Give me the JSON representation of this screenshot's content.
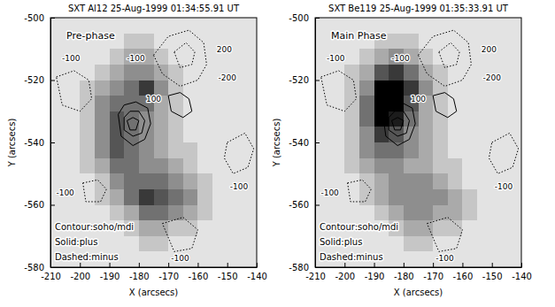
{
  "chart_data": [
    {
      "type": "image",
      "title": "SXT Al12 25-Aug-1999 01:34:55.91 UT",
      "phase": "Pre-phase",
      "notes": [
        "Contour:soho/mdi",
        "Solid:plus",
        "Dashed:minus"
      ],
      "xlabel": "X (arcsecs)",
      "ylabel": "Y (arcsecs)",
      "xlim": [
        -210,
        -140
      ],
      "ylim": [
        -580,
        -500
      ],
      "xticks": [
        -210,
        -200,
        -190,
        -180,
        -170,
        -160,
        -150,
        -140
      ],
      "yticks": [
        -580,
        -560,
        -540,
        -520,
        -500
      ],
      "zlim": [
        0,
        9
      ],
      "x_bins": [
        -210,
        -205,
        -200,
        -195,
        -190,
        -185,
        -180,
        -175,
        -170,
        -165,
        -160,
        -155,
        -150,
        -145,
        -140
      ],
      "y_bins": [
        -500,
        -505,
        -510,
        -515,
        -520,
        -525,
        -530,
        -535,
        -540,
        -545,
        -550,
        -555,
        -560,
        -565,
        -570,
        -575,
        -580
      ],
      "cells": [
        [
          1,
          1,
          1,
          1,
          1,
          1,
          1,
          1,
          1,
          1,
          1,
          1,
          1,
          1
        ],
        [
          1,
          1,
          1,
          1,
          1,
          2,
          2,
          1,
          1,
          1,
          1,
          1,
          1,
          1
        ],
        [
          1,
          1,
          1,
          1,
          2,
          3,
          3,
          2,
          1,
          1,
          1,
          1,
          1,
          1
        ],
        [
          1,
          1,
          1,
          2,
          3,
          4,
          4,
          3,
          2,
          1,
          1,
          1,
          1,
          1
        ],
        [
          1,
          1,
          2,
          3,
          4,
          5,
          7,
          4,
          2,
          1,
          1,
          1,
          1,
          1
        ],
        [
          1,
          1,
          2,
          4,
          5,
          5,
          5,
          3,
          2,
          1,
          1,
          1,
          1,
          1
        ],
        [
          1,
          1,
          2,
          4,
          6,
          5,
          4,
          3,
          2,
          1,
          1,
          1,
          1,
          1
        ],
        [
          1,
          1,
          2,
          4,
          6,
          5,
          4,
          3,
          2,
          1,
          1,
          1,
          1,
          1
        ],
        [
          1,
          1,
          2,
          4,
          6,
          5,
          4,
          3,
          2,
          2,
          1,
          1,
          1,
          1
        ],
        [
          1,
          1,
          2,
          3,
          5,
          5,
          4,
          4,
          3,
          2,
          1,
          1,
          1,
          1
        ],
        [
          1,
          1,
          1,
          2,
          4,
          5,
          5,
          5,
          4,
          3,
          2,
          1,
          1,
          1
        ],
        [
          1,
          1,
          1,
          2,
          3,
          5,
          7,
          6,
          5,
          4,
          2,
          1,
          1,
          1
        ],
        [
          1,
          1,
          1,
          1,
          2,
          3,
          5,
          5,
          4,
          3,
          2,
          1,
          1,
          1
        ],
        [
          1,
          1,
          1,
          1,
          1,
          2,
          3,
          3,
          2,
          2,
          1,
          1,
          1,
          1
        ],
        [
          1,
          1,
          1,
          1,
          1,
          1,
          2,
          2,
          1,
          1,
          1,
          1,
          1,
          1
        ],
        [
          1,
          1,
          1,
          1,
          1,
          1,
          1,
          1,
          1,
          1,
          1,
          1,
          1,
          1
        ]
      ],
      "contours": [
        {
          "level": 100,
          "x": [
            -187,
            -185,
            -181,
            -177,
            -176,
            -178,
            -182,
            -186,
            -187
          ],
          "y": [
            -531,
            -528,
            -527,
            -529,
            -534,
            -539,
            -541,
            -538,
            -531
          ]
        },
        {
          "level": 200,
          "x": [
            -185,
            -183,
            -180,
            -178,
            -179,
            -182,
            -185,
            -185
          ],
          "y": [
            -532,
            -530,
            -530,
            -533,
            -537,
            -538,
            -536,
            -532
          ]
        },
        {
          "level": 300,
          "x": [
            -184,
            -182,
            -180,
            -181,
            -183,
            -184
          ],
          "y": [
            -533,
            -532,
            -533,
            -536,
            -536,
            -533
          ]
        },
        {
          "level": 100,
          "x": [
            -170,
            -166,
            -163,
            -162,
            -165,
            -169,
            -170
          ],
          "y": [
            -525,
            -524,
            -526,
            -530,
            -532,
            -530,
            -525
          ]
        },
        {
          "level": -100,
          "x": [
            -175,
            -170,
            -163,
            -158,
            -157,
            -160,
            -166,
            -172,
            -175
          ],
          "y": [
            -512,
            -506,
            -504,
            -508,
            -515,
            -520,
            -522,
            -518,
            -512
          ]
        },
        {
          "level": -200,
          "x": [
            -168,
            -164,
            -161,
            -162,
            -166,
            -168
          ],
          "y": [
            -511,
            -508,
            -511,
            -515,
            -516,
            -511
          ]
        },
        {
          "level": -100,
          "x": [
            -208,
            -202,
            -197,
            -196,
            -200,
            -206,
            -208
          ],
          "y": [
            -519,
            -517,
            -520,
            -526,
            -530,
            -528,
            -519
          ]
        },
        {
          "level": -100,
          "x": [
            -199,
            -194,
            -191,
            -193,
            -198,
            -199
          ],
          "y": [
            -553,
            -552,
            -555,
            -559,
            -559,
            -553
          ]
        },
        {
          "level": -100,
          "x": [
            -172,
            -165,
            -160,
            -162,
            -168,
            -172
          ],
          "y": [
            -566,
            -564,
            -568,
            -574,
            -575,
            -566
          ]
        },
        {
          "level": -100,
          "x": [
            -150,
            -144,
            -141,
            -143,
            -148,
            -151,
            -150
          ],
          "y": [
            -540,
            -537,
            -542,
            -548,
            -550,
            -545,
            -540
          ]
        }
      ],
      "annotations": [
        {
          "text": "-100",
          "x": -203,
          "y": -514
        },
        {
          "text": "-100",
          "x": -181,
          "y": -514
        },
        {
          "text": "100",
          "x": -175,
          "y": -527
        },
        {
          "text": "200",
          "x": -151,
          "y": -511
        },
        {
          "text": "-200",
          "x": -150,
          "y": -520
        },
        {
          "text": "-100",
          "x": -205,
          "y": -557
        },
        {
          "text": "-100",
          "x": -166,
          "y": -578
        },
        {
          "text": "-100",
          "x": -146,
          "y": -555
        }
      ]
    },
    {
      "type": "image",
      "title": "SXT Be119 25-Aug-1999 01:35:33.91 UT",
      "phase": "Main Phase",
      "notes": [
        "Contour:soho/mdi",
        "Solid:plus",
        "Dashed:minus"
      ],
      "xlabel": "X (arcsecs)",
      "ylabel": "Y (arcsecs)",
      "xlim": [
        -210,
        -140
      ],
      "ylim": [
        -580,
        -500
      ],
      "xticks": [
        -210,
        -200,
        -190,
        -180,
        -170,
        -160,
        -150,
        -140
      ],
      "yticks": [
        -580,
        -560,
        -540,
        -520,
        -500
      ],
      "zlim": [
        0,
        9
      ],
      "x_bins": [
        -210,
        -205,
        -200,
        -195,
        -190,
        -185,
        -180,
        -175,
        -170,
        -165,
        -160,
        -155,
        -150,
        -145,
        -140
      ],
      "y_bins": [
        -500,
        -505,
        -510,
        -515,
        -520,
        -525,
        -530,
        -535,
        -540,
        -545,
        -550,
        -555,
        -560,
        -565,
        -570,
        -575,
        -580
      ],
      "cells": [
        [
          1,
          1,
          1,
          1,
          1,
          1,
          1,
          1,
          1,
          1,
          1,
          1,
          1,
          1
        ],
        [
          1,
          1,
          1,
          1,
          2,
          2,
          2,
          1,
          1,
          1,
          1,
          1,
          1,
          1
        ],
        [
          1,
          1,
          1,
          2,
          3,
          4,
          3,
          2,
          1,
          1,
          1,
          1,
          1,
          1
        ],
        [
          1,
          1,
          2,
          3,
          6,
          7,
          5,
          3,
          2,
          1,
          1,
          1,
          1,
          1
        ],
        [
          1,
          1,
          2,
          4,
          9,
          9,
          7,
          4,
          2,
          1,
          1,
          1,
          1,
          1
        ],
        [
          1,
          1,
          2,
          5,
          9,
          9,
          6,
          3,
          2,
          1,
          1,
          1,
          1,
          1
        ],
        [
          1,
          1,
          2,
          5,
          9,
          8,
          5,
          3,
          2,
          1,
          1,
          1,
          1,
          1
        ],
        [
          1,
          1,
          2,
          4,
          7,
          6,
          4,
          3,
          2,
          1,
          1,
          1,
          1,
          1
        ],
        [
          1,
          1,
          2,
          4,
          5,
          5,
          4,
          3,
          2,
          1,
          1,
          1,
          1,
          1
        ],
        [
          1,
          1,
          2,
          3,
          4,
          4,
          3,
          3,
          2,
          2,
          1,
          1,
          1,
          1
        ],
        [
          1,
          1,
          1,
          2,
          3,
          4,
          4,
          4,
          3,
          2,
          1,
          1,
          1,
          1
        ],
        [
          1,
          1,
          1,
          2,
          3,
          4,
          4,
          4,
          4,
          3,
          2,
          1,
          1,
          1
        ],
        [
          1,
          1,
          1,
          1,
          2,
          3,
          4,
          4,
          3,
          3,
          2,
          1,
          1,
          1
        ],
        [
          1,
          1,
          1,
          1,
          1,
          2,
          3,
          3,
          2,
          2,
          1,
          1,
          1,
          1
        ],
        [
          1,
          1,
          1,
          1,
          1,
          1,
          2,
          2,
          1,
          1,
          1,
          1,
          1,
          1
        ],
        [
          1,
          1,
          1,
          1,
          1,
          1,
          1,
          1,
          1,
          1,
          1,
          1,
          1,
          1
        ]
      ],
      "contours": [
        {
          "level": 100,
          "x": [
            -187,
            -185,
            -181,
            -177,
            -176,
            -178,
            -182,
            -186,
            -187
          ],
          "y": [
            -531,
            -528,
            -527,
            -529,
            -534,
            -539,
            -541,
            -538,
            -531
          ]
        },
        {
          "level": 200,
          "x": [
            -185,
            -183,
            -180,
            -178,
            -179,
            -182,
            -185,
            -185
          ],
          "y": [
            -532,
            -530,
            -530,
            -533,
            -537,
            -538,
            -536,
            -532
          ]
        },
        {
          "level": 300,
          "x": [
            -184,
            -182,
            -180,
            -181,
            -183,
            -184
          ],
          "y": [
            -533,
            -532,
            -533,
            -536,
            -536,
            -533
          ]
        },
        {
          "level": 100,
          "x": [
            -170,
            -166,
            -163,
            -162,
            -165,
            -169,
            -170
          ],
          "y": [
            -525,
            -524,
            -526,
            -530,
            -532,
            -530,
            -525
          ]
        },
        {
          "level": -100,
          "x": [
            -175,
            -170,
            -163,
            -158,
            -157,
            -160,
            -166,
            -172,
            -175
          ],
          "y": [
            -512,
            -506,
            -504,
            -508,
            -515,
            -520,
            -522,
            -518,
            -512
          ]
        },
        {
          "level": -200,
          "x": [
            -168,
            -164,
            -161,
            -162,
            -166,
            -168
          ],
          "y": [
            -511,
            -508,
            -511,
            -515,
            -516,
            -511
          ]
        },
        {
          "level": -100,
          "x": [
            -208,
            -202,
            -197,
            -196,
            -200,
            -206,
            -208
          ],
          "y": [
            -519,
            -517,
            -520,
            -526,
            -530,
            -528,
            -519
          ]
        },
        {
          "level": -100,
          "x": [
            -199,
            -194,
            -191,
            -193,
            -198,
            -199
          ],
          "y": [
            -553,
            -552,
            -555,
            -559,
            -559,
            -553
          ]
        },
        {
          "level": -100,
          "x": [
            -172,
            -165,
            -160,
            -162,
            -168,
            -172
          ],
          "y": [
            -566,
            -564,
            -568,
            -574,
            -575,
            -566
          ]
        },
        {
          "level": -100,
          "x": [
            -150,
            -144,
            -141,
            -143,
            -148,
            -151,
            -150
          ],
          "y": [
            -540,
            -537,
            -542,
            -548,
            -550,
            -545,
            -540
          ]
        }
      ],
      "annotations": [
        {
          "text": "-100",
          "x": -203,
          "y": -514
        },
        {
          "text": "-100",
          "x": -181,
          "y": -514
        },
        {
          "text": "100",
          "x": -175,
          "y": -527
        },
        {
          "text": "200",
          "x": -151,
          "y": -511
        },
        {
          "text": "-200",
          "x": -150,
          "y": -520
        },
        {
          "text": "-100",
          "x": -205,
          "y": -557
        },
        {
          "text": "-100",
          "x": -166,
          "y": -578
        },
        {
          "text": "-100",
          "x": -146,
          "y": -555
        }
      ]
    }
  ]
}
